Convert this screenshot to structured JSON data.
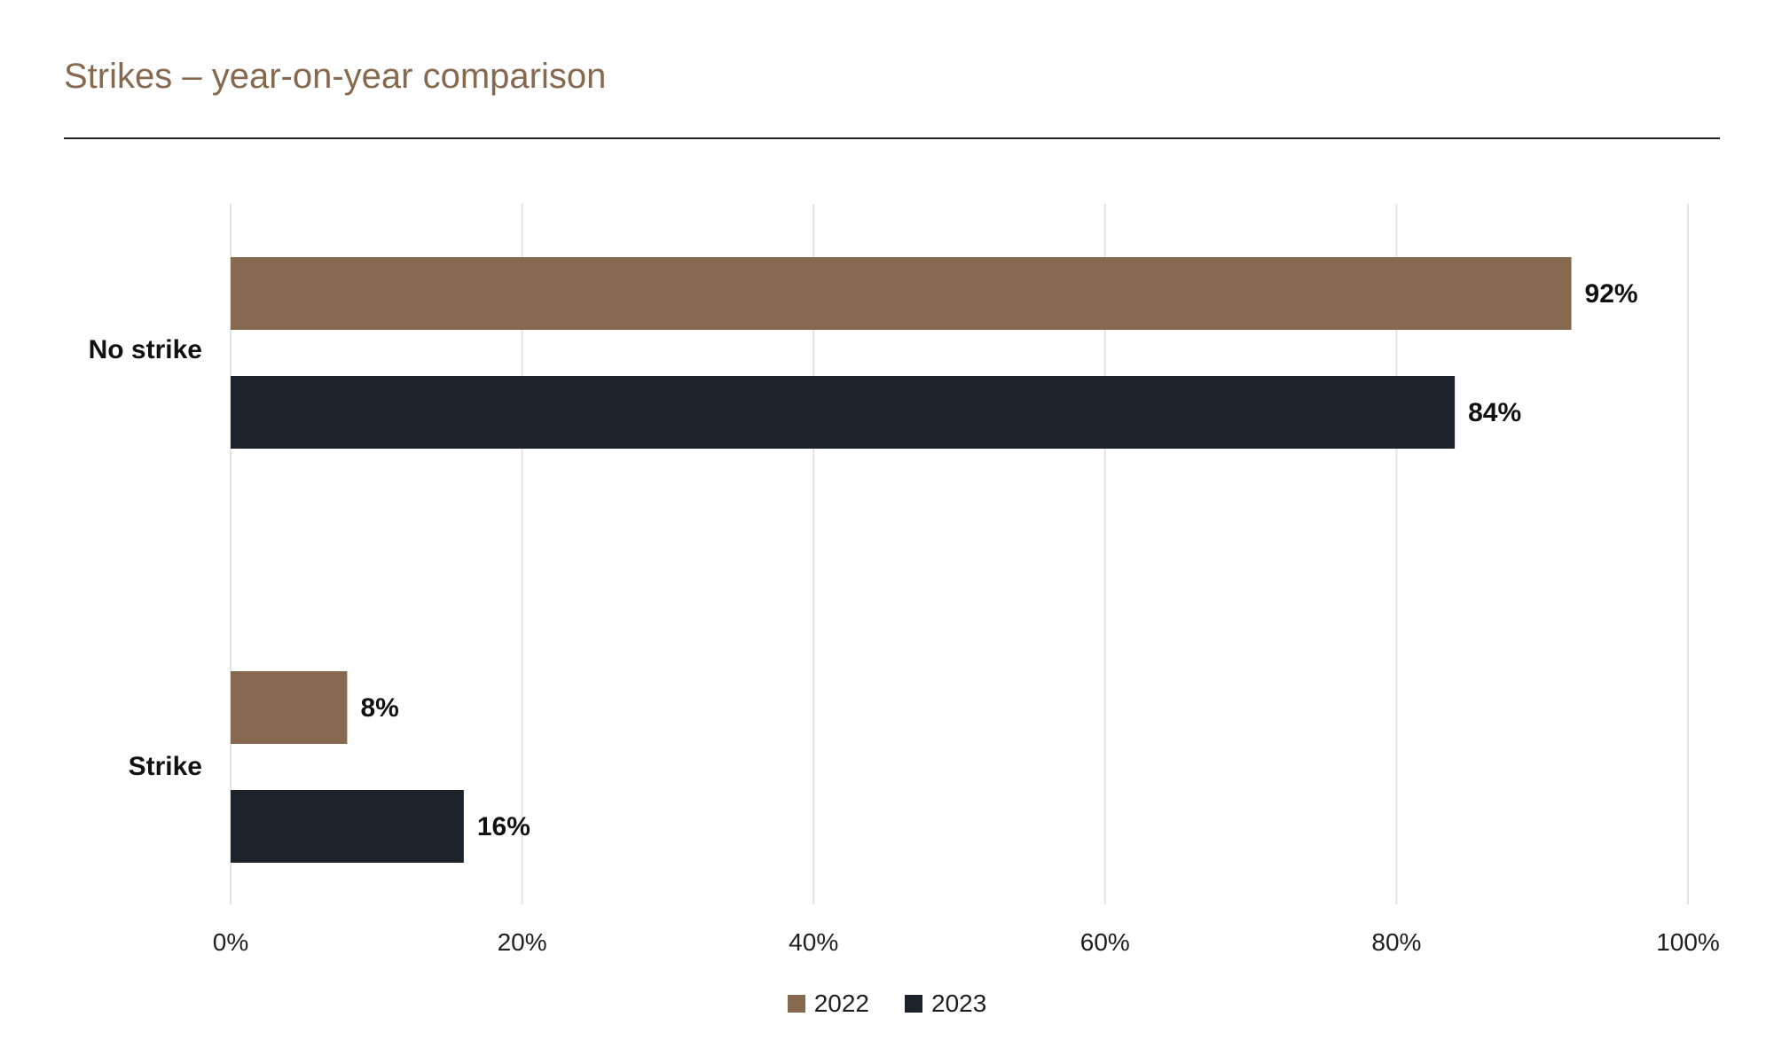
{
  "chart_data": {
    "type": "bar",
    "orientation": "horizontal",
    "title": "Strikes – year-on-year comparison",
    "categories": [
      "No strike",
      "Strike"
    ],
    "series": [
      {
        "name": "2022",
        "values": [
          92,
          8
        ],
        "color": "#86694f"
      },
      {
        "name": "2023",
        "values": [
          84,
          16
        ],
        "color": "#1d232a"
      }
    ],
    "value_labels": [
      [
        "92%",
        "8%"
      ],
      [
        "84%",
        "16%"
      ]
    ],
    "x_ticks": [
      "0%",
      "20%",
      "40%",
      "60%",
      "80%",
      "100%"
    ],
    "xlim": [
      0,
      100
    ],
    "grid": true,
    "legend_position": "bottom"
  }
}
